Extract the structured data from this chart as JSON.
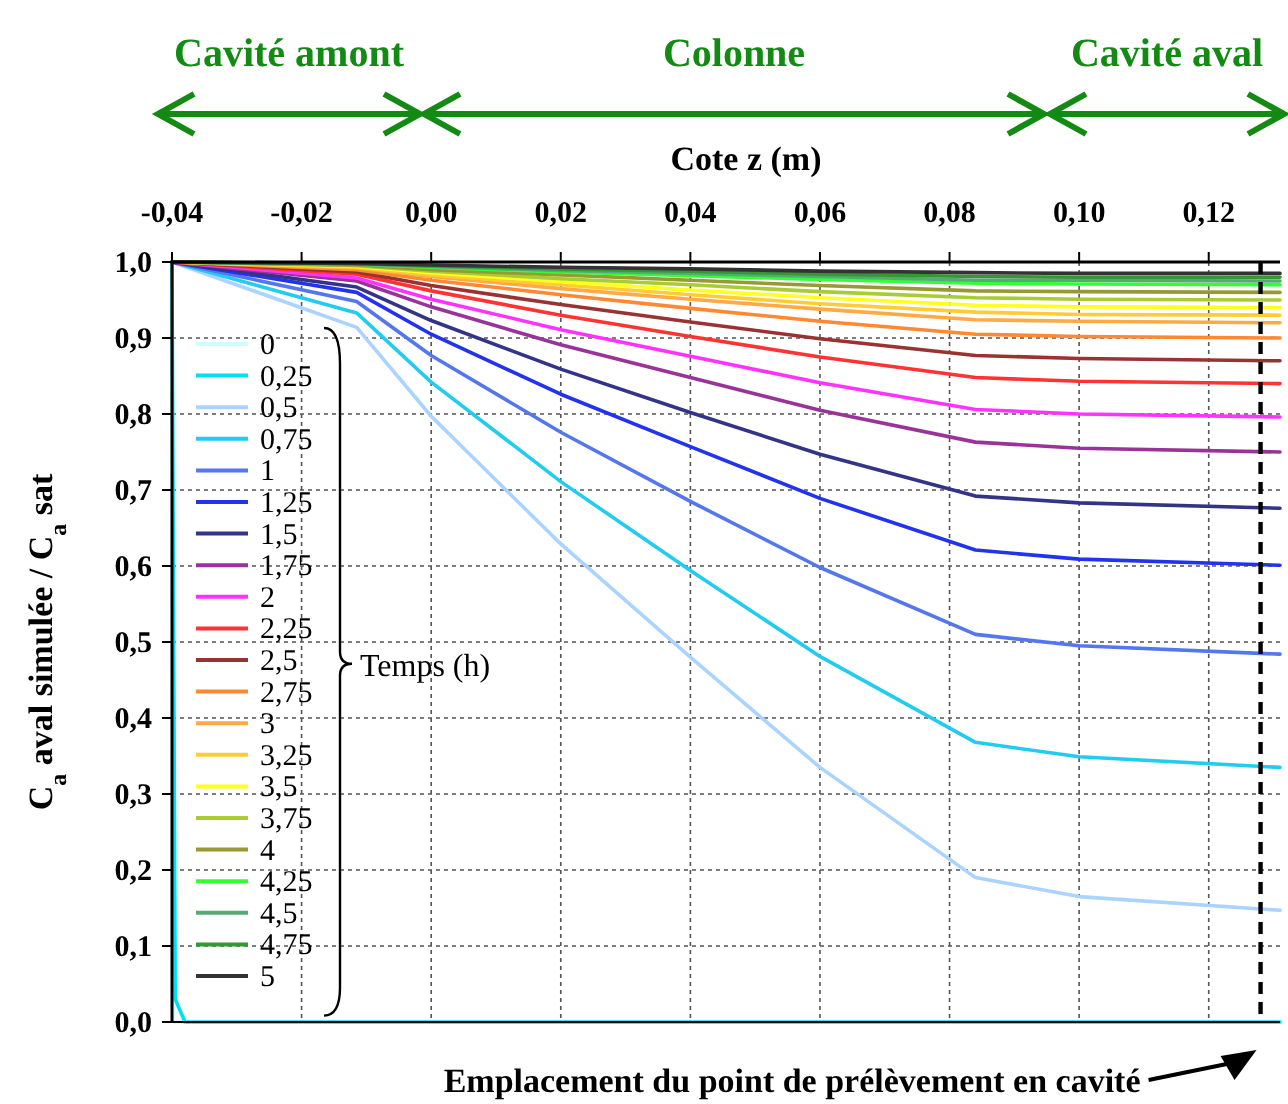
{
  "chart_data": {
    "type": "line",
    "xlabel": "Cote z (m)",
    "ylabel": "C$_{a}$ aval simulée / C$_{a}$ sat",
    "legend_title": "Temps (h)",
    "legend": "left",
    "grid": true,
    "line_style": "solid",
    "marker": "none",
    "xlim": [
      -0.04,
      0.131
    ],
    "ylim": [
      0,
      1
    ],
    "xticks": [
      {
        "value": -0.04,
        "label": "-0,04"
      },
      {
        "value": -0.02,
        "label": "-0,02"
      },
      {
        "value": 0,
        "label": "0,00"
      },
      {
        "value": 0.02,
        "label": "0,02"
      },
      {
        "value": 0.04,
        "label": "0,04"
      },
      {
        "value": 0.06,
        "label": "0,06"
      },
      {
        "value": 0.08,
        "label": "0,08"
      },
      {
        "value": 0.1,
        "label": "0,10"
      },
      {
        "value": 0.12,
        "label": "0,12"
      }
    ],
    "yticks": [
      {
        "value": 0,
        "label": "0,0"
      },
      {
        "value": 0.1,
        "label": "0,1"
      },
      {
        "value": 0.2,
        "label": "0,2"
      },
      {
        "value": 0.3,
        "label": "0,3"
      },
      {
        "value": 0.4,
        "label": "0,4"
      },
      {
        "value": 0.5,
        "label": "0,5"
      },
      {
        "value": 0.6,
        "label": "0,6"
      },
      {
        "value": 0.7,
        "label": "0,7"
      },
      {
        "value": 0.8,
        "label": "0,8"
      },
      {
        "value": 0.9,
        "label": "0,9"
      },
      {
        "value": 1,
        "label": "1,0"
      }
    ],
    "annotations": [
      "Cavité amont",
      "Colonne",
      "Cavité aval",
      "Emplacement du point de prélèvement en cavité"
    ],
    "ref_lines": [
      {
        "axis": "x",
        "value": 0.128,
        "color": "#000000",
        "line_style": "dashed"
      }
    ],
    "x": [
      -0.04,
      -0.0115,
      0,
      0.02,
      0.04,
      0.06,
      0.084,
      0.1,
      0.131
    ],
    "series": [
      {
        "name": "0",
        "color": "#ccffff",
        "x": [
          -0.04,
          -0.0398,
          0.131
        ],
        "values": [
          1,
          0,
          0
        ]
      },
      {
        "name": "0,25",
        "color": "#00e0ee",
        "x": [
          -0.04,
          -0.0395,
          -0.038,
          0.131
        ],
        "values": [
          1,
          0.03,
          0,
          0
        ]
      },
      {
        "name": "0,5",
        "color": "#aad4ff",
        "values": [
          1,
          0.914,
          0.797,
          0.629,
          0.48,
          0.335,
          0.19,
          0.165,
          0.147
        ]
      },
      {
        "name": "0,75",
        "color": "#22ccee",
        "values": [
          1,
          0.933,
          0.842,
          0.711,
          0.594,
          0.481,
          0.368,
          0.349,
          0.335
        ]
      },
      {
        "name": "1",
        "color": "#5577ee",
        "values": [
          1,
          0.948,
          0.877,
          0.776,
          0.685,
          0.598,
          0.51,
          0.495,
          0.484
        ]
      },
      {
        "name": "1,25",
        "color": "#2233ee",
        "values": [
          1,
          0.96,
          0.905,
          0.826,
          0.757,
          0.689,
          0.621,
          0.609,
          0.601
        ]
      },
      {
        "name": "1,5",
        "color": "#333388",
        "values": [
          1,
          0.967,
          0.923,
          0.859,
          0.802,
          0.747,
          0.692,
          0.683,
          0.676
        ]
      },
      {
        "name": "1,75",
        "color": "#993399",
        "values": [
          1,
          0.975,
          0.941,
          0.891,
          0.848,
          0.805,
          0.763,
          0.755,
          0.75
        ]
      },
      {
        "name": "2",
        "color": "#ff33ff",
        "values": [
          1,
          0.979,
          0.951,
          0.911,
          0.876,
          0.841,
          0.806,
          0.8,
          0.796
        ]
      },
      {
        "name": "2,25",
        "color": "#ff3333",
        "values": [
          1,
          0.984,
          0.962,
          0.93,
          0.902,
          0.875,
          0.848,
          0.843,
          0.84
        ]
      },
      {
        "name": "2,5",
        "color": "#993333",
        "values": [
          1,
          0.987,
          0.969,
          0.944,
          0.921,
          0.899,
          0.877,
          0.873,
          0.87
        ]
      },
      {
        "name": "2,75",
        "color": "#ff8833",
        "values": [
          1,
          0.99,
          0.976,
          0.957,
          0.939,
          0.922,
          0.905,
          0.902,
          0.9
        ]
      },
      {
        "name": "3",
        "color": "#ffaa44",
        "values": [
          1,
          0.992,
          0.981,
          0.965,
          0.951,
          0.938,
          0.924,
          0.922,
          0.92
        ]
      },
      {
        "name": "3,25",
        "color": "#ffcc33",
        "values": [
          1,
          0.993,
          0.983,
          0.97,
          0.957,
          0.945,
          0.934,
          0.931,
          0.93
        ]
      },
      {
        "name": "3,5",
        "color": "#ffff22",
        "values": [
          1,
          0.994,
          0.986,
          0.974,
          0.963,
          0.953,
          0.943,
          0.941,
          0.94
        ]
      },
      {
        "name": "3,75",
        "color": "#aacc33",
        "values": [
          1,
          0.995,
          0.988,
          0.978,
          0.97,
          0.961,
          0.953,
          0.951,
          0.95
        ]
      },
      {
        "name": "4",
        "color": "#999933",
        "values": [
          1,
          0.996,
          0.99,
          0.983,
          0.976,
          0.969,
          0.962,
          0.961,
          0.96
        ]
      },
      {
        "name": "4,25",
        "color": "#33ff33",
        "values": [
          1,
          0.997,
          0.993,
          0.987,
          0.982,
          0.977,
          0.972,
          0.971,
          0.97
        ]
      },
      {
        "name": "4,5",
        "color": "#55aa77",
        "values": [
          1,
          0.997,
          0.994,
          0.989,
          0.985,
          0.981,
          0.976,
          0.976,
          0.975
        ]
      },
      {
        "name": "4,75",
        "color": "#339933",
        "values": [
          1,
          0.998,
          0.995,
          0.991,
          0.988,
          0.984,
          0.981,
          0.98,
          0.98
        ]
      },
      {
        "name": "5",
        "color": "#333333",
        "values": [
          1,
          0.998,
          0.996,
          0.993,
          0.991,
          0.988,
          0.986,
          0.985,
          0.985
        ]
      }
    ]
  }
}
